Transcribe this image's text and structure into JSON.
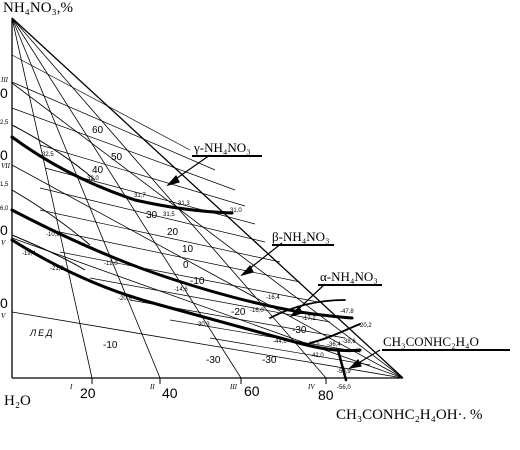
{
  "axes": {
    "top_label": "NH₄NO₃,%",
    "bottom_left_label": "H₂O",
    "bottom_right_label": "CH₃CONHC₂H₄OH·. %"
  },
  "phase_labels": {
    "gamma": "γ-NH₄NO₃",
    "beta": "β-NH₄NO₃",
    "alpha": "α-NH₄NO₃",
    "amide": "CH₃CONHC₂H₄O",
    "ice": "ЛЕД"
  },
  "bottom_axis": {
    "ticks": [
      "20",
      "40",
      "60",
      "80"
    ],
    "roman": [
      "I",
      "II",
      "III",
      "IV"
    ]
  },
  "left_axis": {
    "ticks": [
      "0",
      "0",
      "0",
      "0",
      "0",
      "0"
    ],
    "roman": [
      "III",
      "VII",
      "VI",
      "V",
      "II",
      "V"
    ]
  },
  "side_values": [
    "2,5",
    "1,5",
    "6,0"
  ],
  "isotherms": [
    "60",
    "50",
    "40",
    "30",
    "20",
    "10",
    "0",
    "-10",
    "-20",
    "-30",
    "-10",
    "-30",
    "-30"
  ],
  "curve_points": {
    "gamma": [
      "32,5",
      "32,0",
      "31,7",
      "31,3",
      "31,5",
      "31,0"
    ],
    "beta": [
      "-10,8",
      "-12,0",
      "-14,6",
      "-16,4",
      "-16,0",
      "-17,2",
      "-47,8"
    ],
    "alpha": [
      "-19,4",
      "-21,2",
      "-20,8",
      "-30,3",
      "-44,6",
      "-47,2",
      "-42,0",
      "-36,4",
      "-50,9",
      "-20,2",
      "-38,6",
      "-56,0"
    ]
  }
}
